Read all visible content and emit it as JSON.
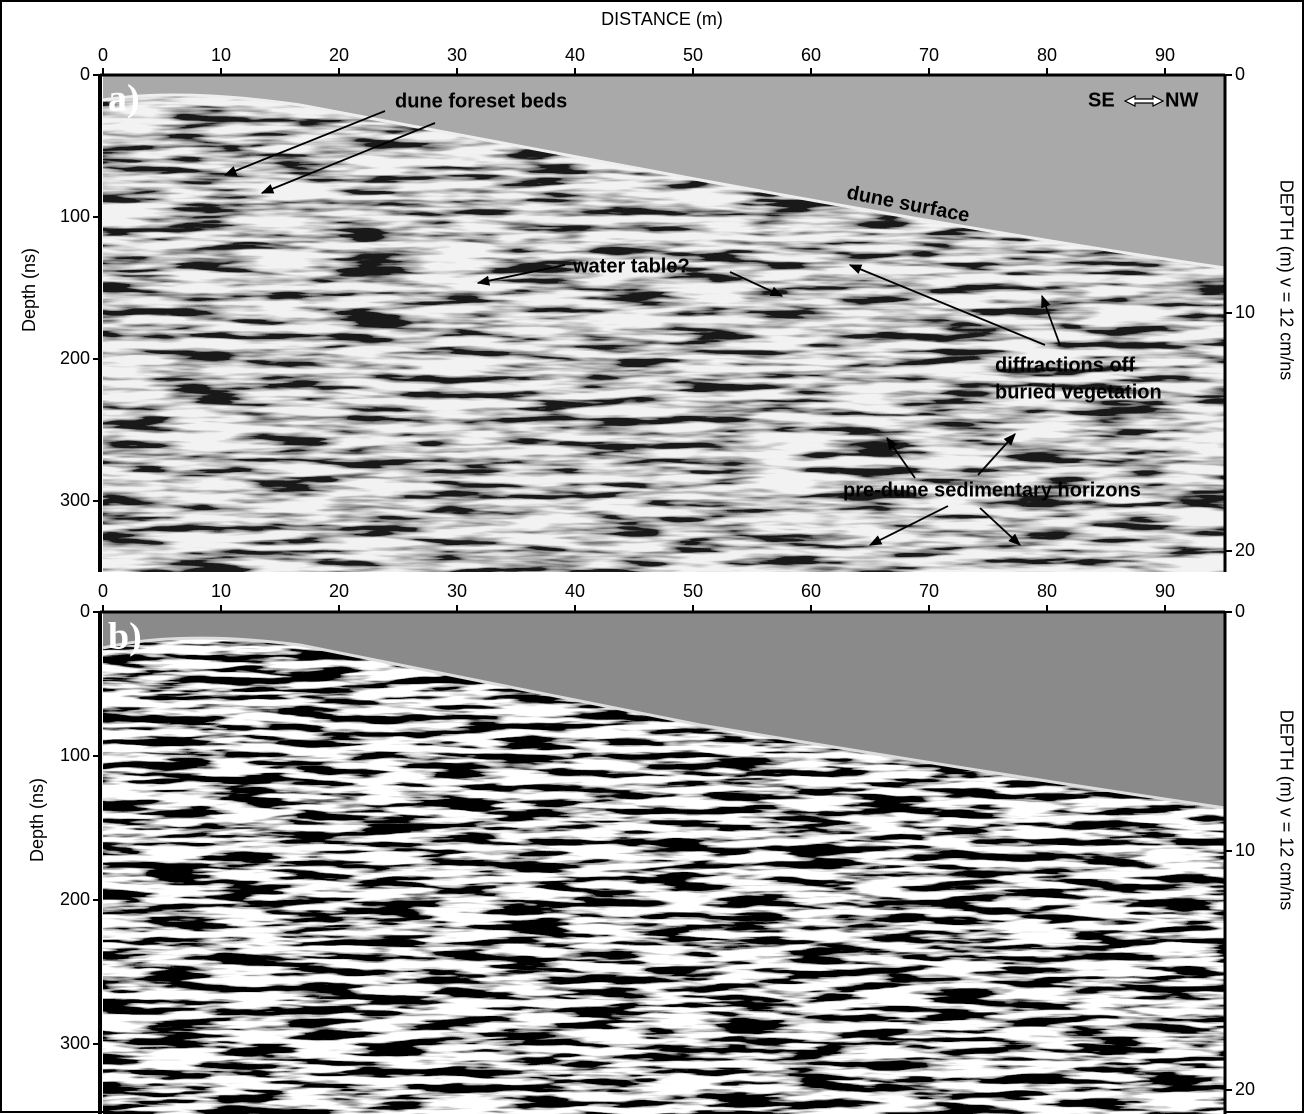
{
  "x_axis_title": "DISTANCE (m)",
  "panels": [
    {
      "label": "a)",
      "x_ticks": [
        0,
        10,
        20,
        30,
        40,
        50,
        60,
        70,
        80,
        90
      ],
      "left_axis_title": "Depth  (ns)",
      "left_ticks": [
        0,
        100,
        200,
        300
      ],
      "right_axis_title": "DEPTH (m) v = 12 cm/ns",
      "right_ticks": [
        0,
        10,
        20
      ],
      "annotations": {
        "foreset": "dune foreset beds",
        "se": "SE",
        "nw": "NW",
        "surface": "dune surface",
        "water": "water table?",
        "diffractions_1": "diffractions off",
        "diffractions_2": "buried vegetation",
        "horizons": "pre-dune sedimentary horizons"
      }
    },
    {
      "label": "b)",
      "x_ticks": [
        0,
        10,
        20,
        30,
        40,
        50,
        60,
        70,
        80,
        90
      ],
      "left_axis_title": "Depth  (ns)",
      "left_ticks": [
        0,
        100,
        200,
        300
      ],
      "right_axis_title": "DEPTH (m) v = 12 cm/ns",
      "right_ticks": [
        0,
        10,
        20
      ]
    }
  ]
}
